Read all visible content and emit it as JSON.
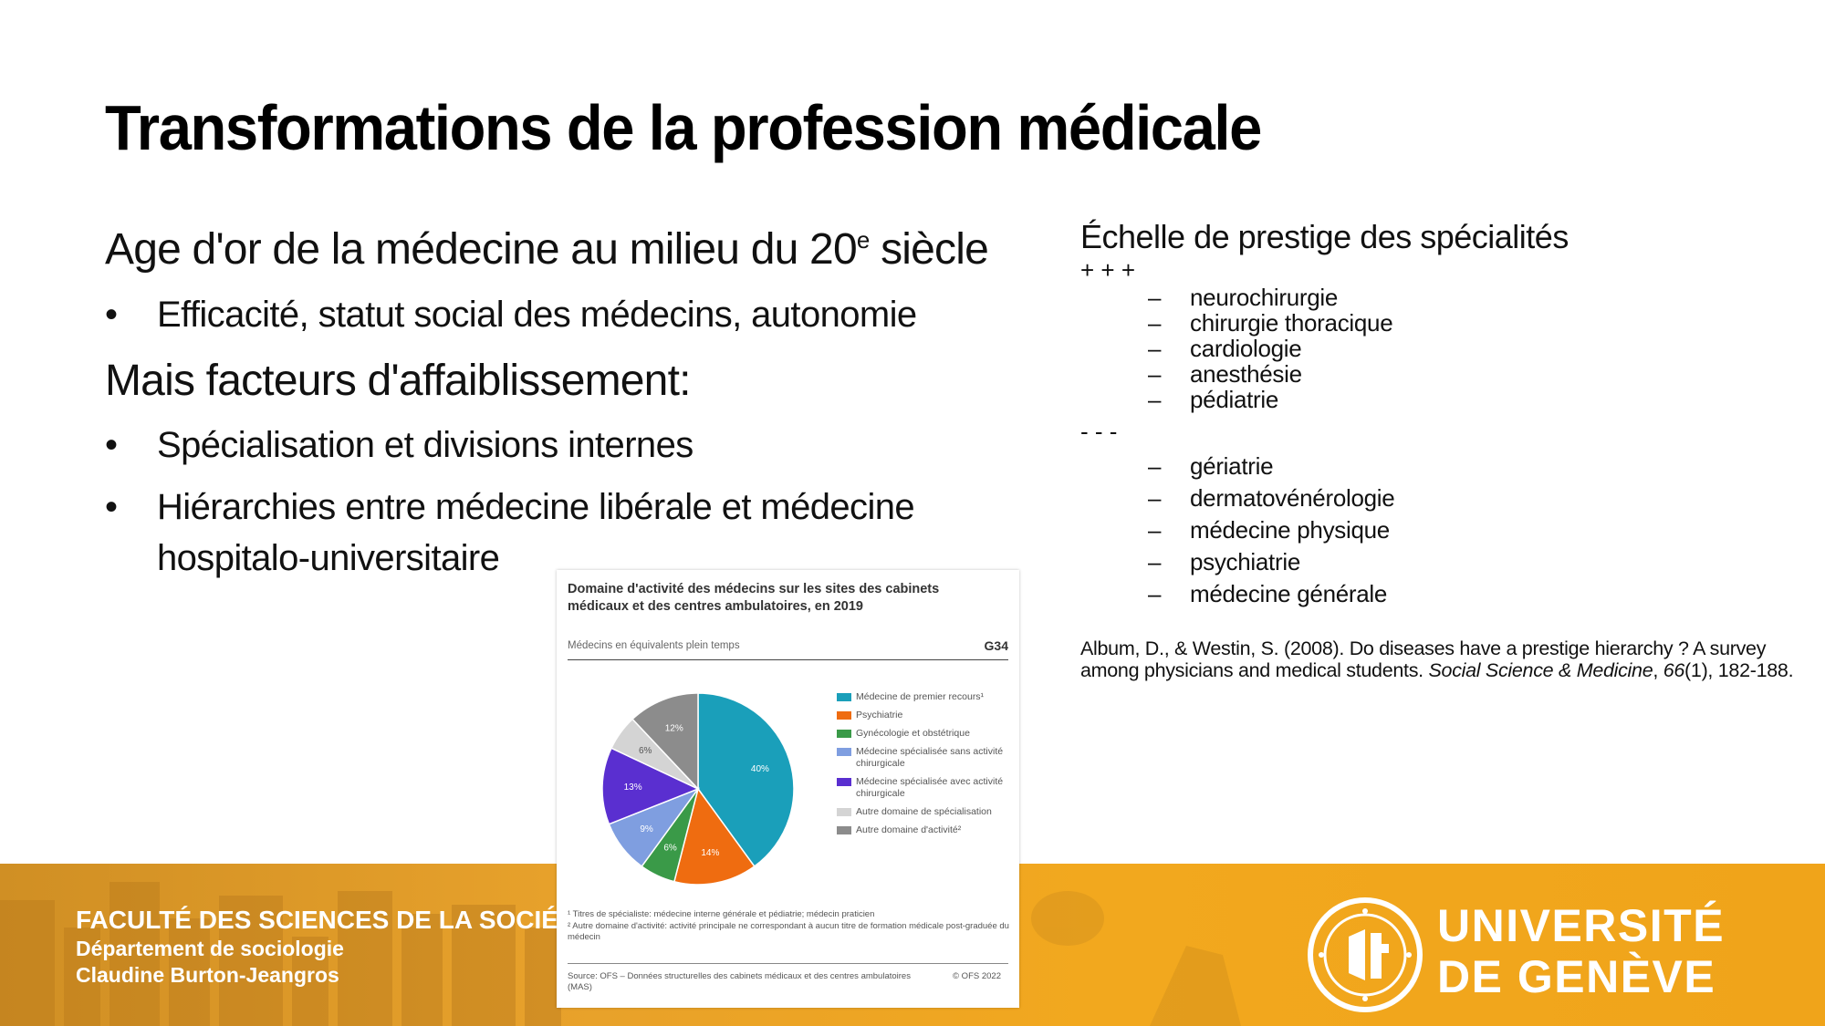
{
  "slide": {
    "title": "Transformations de la profession médicale",
    "left": {
      "heading1_main": "Age d'or de la médecine au milieu du 20",
      "heading1_sup": "e",
      "heading1_tail": " siècle",
      "bullets1": [
        "Efficacité, statut social des médecins, autonomie"
      ],
      "heading2": "Mais facteurs d'affaiblissement:",
      "bullets2": [
        "Spécialisation et divisions internes",
        "Hiérarchies entre médecine libérale et médecine hospitalo-universitaire"
      ],
      "bullet_glyph": "•"
    },
    "right": {
      "heading": "Échelle de prestige des spécialités",
      "high_mark": "+ + +",
      "high": [
        "neurochirurgie",
        "chirurgie thoracique",
        "cardiologie",
        "anesthésie",
        "pédiatrie"
      ],
      "low_mark": "- - -",
      "low": [
        "gériatrie",
        "dermatovénérologie",
        "médecine physique",
        "psychiatrie",
        "médecine générale"
      ],
      "dash_glyph": "–",
      "reference": {
        "authors": "Album, D., & Westin, S. (2008). Do diseases have a prestige hierarchy ? A survey among physicians and medical students. ",
        "journal": "Social Science & Medicine",
        "sep": ", ",
        "volume": "66",
        "rest": "(1), 182-188."
      }
    }
  },
  "figure": {
    "title": "Domaine d'activité des médecins sur les sites des cabinets médicaux et des centres ambulatoires, en 2019",
    "subtitle": "Médecins en équivalents plein temps",
    "code": "G34",
    "notes": [
      "¹ Titres de spécialiste: médecine interne générale et pédiatrie; médecin praticien",
      "² Autre domaine d'activité: activité principale ne correspondant à aucun titre de formation médicale post-graduée du médecin"
    ],
    "source": "Source: OFS – Données structurelles des cabinets médicaux et des centres ambulatoires (MAS)",
    "copyright": "© OFS 2022"
  },
  "chart_data": {
    "type": "pie",
    "title": "Domaine d'activité des médecins sur les sites des cabinets médicaux et des centres ambulatoires, en 2019",
    "unit": "%",
    "slices": [
      {
        "label": "Médecine de premier recours¹",
        "value": 40,
        "color": "#1a9fba"
      },
      {
        "label": "Psychiatrie",
        "value": 14,
        "color": "#ef6c10"
      },
      {
        "label": "Gynécologie et obstétrique",
        "value": 6,
        "color": "#3a9a48"
      },
      {
        "label": "Médecine spécialisée sans activité chirurgicale",
        "value": 9,
        "color": "#7f9ee0"
      },
      {
        "label": "Médecine spécialisée avec activité chirurgicale",
        "value": 13,
        "color": "#5a2fd0"
      },
      {
        "label": "Autre domaine de spécialisation",
        "value": 6,
        "color": "#d4d4d4"
      },
      {
        "label": "Autre domaine d'activité²",
        "value": 12,
        "color": "#8c8c8c"
      }
    ],
    "legend_position": "right"
  },
  "banner": {
    "faculty": "FACULTÉ DES SCIENCES DE LA SOCIÉTÉ",
    "department": "Département de sociologie",
    "author": "Claudine Burton-Jeangros",
    "university_line1": "UNIVERSITÉ",
    "university_line2": "DE GENÈVE",
    "color": "#f0a41a"
  }
}
